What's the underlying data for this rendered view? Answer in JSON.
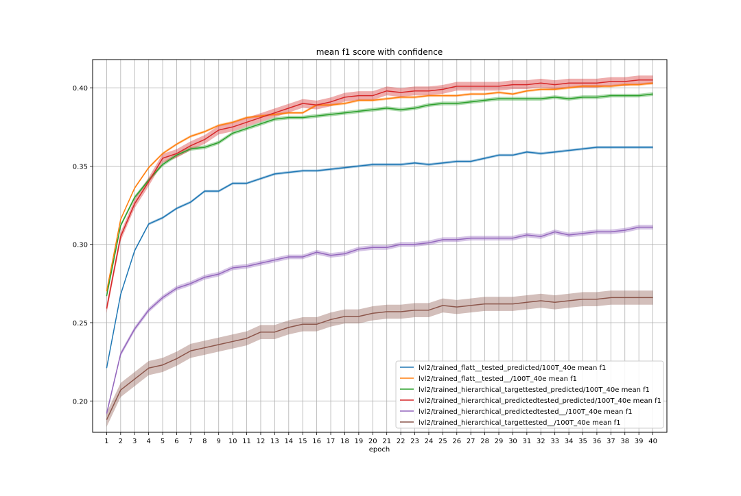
{
  "chart_data": {
    "type": "line",
    "title": "mean f1 score with confidence",
    "xlabel": "epoch",
    "ylabel": "",
    "xlim": [
      0,
      41
    ],
    "ylim": [
      0.18,
      0.418
    ],
    "grid": true,
    "legend_position": "lower-right",
    "x": [
      1,
      2,
      3,
      4,
      5,
      6,
      7,
      8,
      9,
      10,
      11,
      12,
      13,
      14,
      15,
      16,
      17,
      18,
      19,
      20,
      21,
      22,
      23,
      24,
      25,
      26,
      27,
      28,
      29,
      30,
      31,
      32,
      33,
      34,
      35,
      36,
      37,
      38,
      39,
      40
    ],
    "x_ticks": [
      "1",
      "2",
      "3",
      "4",
      "5",
      "6",
      "7",
      "8",
      "9",
      "10",
      "11",
      "12",
      "13",
      "14",
      "15",
      "16",
      "17",
      "18",
      "19",
      "20",
      "21",
      "22",
      "23",
      "24",
      "25",
      "26",
      "27",
      "28",
      "29",
      "30",
      "31",
      "32",
      "33",
      "34",
      "35",
      "36",
      "37",
      "38",
      "39",
      "40"
    ],
    "y_ticks": [
      "0.20",
      "0.25",
      "0.30",
      "0.35",
      "0.40"
    ],
    "y_tick_values": [
      0.2,
      0.25,
      0.3,
      0.35,
      0.4
    ],
    "series": [
      {
        "name": "lvl2/trained_flatt__tested_predicted/100T_40e mean f1",
        "color": "#1f77b4",
        "band": 0.0008,
        "values": [
          0.221,
          0.268,
          0.296,
          0.313,
          0.317,
          0.323,
          0.327,
          0.334,
          0.334,
          0.339,
          0.339,
          0.342,
          0.345,
          0.346,
          0.347,
          0.347,
          0.348,
          0.349,
          0.35,
          0.351,
          0.351,
          0.351,
          0.352,
          0.351,
          0.352,
          0.353,
          0.353,
          0.355,
          0.357,
          0.357,
          0.359,
          0.358,
          0.359,
          0.36,
          0.361,
          0.362,
          0.362,
          0.362,
          0.362,
          0.362
        ]
      },
      {
        "name": "lvl2/trained_flatt__tested__/100T_40e mean f1",
        "color": "#ff7f0e",
        "band": 0.0008,
        "values": [
          0.27,
          0.316,
          0.336,
          0.349,
          0.358,
          0.364,
          0.369,
          0.372,
          0.376,
          0.378,
          0.381,
          0.382,
          0.383,
          0.384,
          0.384,
          0.389,
          0.389,
          0.39,
          0.392,
          0.392,
          0.393,
          0.394,
          0.394,
          0.395,
          0.395,
          0.395,
          0.396,
          0.396,
          0.397,
          0.396,
          0.398,
          0.399,
          0.399,
          0.4,
          0.401,
          0.401,
          0.401,
          0.402,
          0.402,
          0.403
        ]
      },
      {
        "name": "lvl2/trained_hierarchical_targettested_predicted/100T_40e mean f1",
        "color": "#2ca02c",
        "band": 0.0012,
        "values": [
          0.267,
          0.312,
          0.33,
          0.341,
          0.351,
          0.357,
          0.361,
          0.362,
          0.365,
          0.371,
          0.374,
          0.377,
          0.38,
          0.381,
          0.381,
          0.382,
          0.383,
          0.384,
          0.385,
          0.386,
          0.387,
          0.386,
          0.387,
          0.389,
          0.39,
          0.39,
          0.391,
          0.392,
          0.393,
          0.393,
          0.393,
          0.393,
          0.394,
          0.393,
          0.394,
          0.394,
          0.395,
          0.395,
          0.395,
          0.396
        ]
      },
      {
        "name": "lvl2/trained_hierarchical_predictedtested_predicted/100T_40e mean f1",
        "color": "#d62728",
        "band": 0.0028,
        "values": [
          0.259,
          0.305,
          0.326,
          0.34,
          0.355,
          0.358,
          0.363,
          0.367,
          0.373,
          0.375,
          0.378,
          0.381,
          0.384,
          0.387,
          0.39,
          0.389,
          0.391,
          0.394,
          0.395,
          0.395,
          0.398,
          0.397,
          0.398,
          0.398,
          0.399,
          0.401,
          0.401,
          0.401,
          0.401,
          0.402,
          0.402,
          0.403,
          0.402,
          0.403,
          0.403,
          0.403,
          0.404,
          0.404,
          0.405,
          0.405
        ]
      },
      {
        "name": "lvl2/trained_hierarchical_predictedtested__/100T_40e mean f1",
        "color": "#9467bd",
        "band": 0.0015,
        "values": [
          0.192,
          0.23,
          0.246,
          0.258,
          0.266,
          0.272,
          0.275,
          0.279,
          0.281,
          0.285,
          0.286,
          0.288,
          0.29,
          0.292,
          0.292,
          0.295,
          0.293,
          0.294,
          0.297,
          0.298,
          0.298,
          0.3,
          0.3,
          0.301,
          0.303,
          0.303,
          0.304,
          0.304,
          0.304,
          0.304,
          0.306,
          0.305,
          0.308,
          0.306,
          0.307,
          0.308,
          0.308,
          0.309,
          0.311,
          0.311
        ]
      },
      {
        "name": "lvl2/trained_hierarchical_targettested__/100T_40e mean f1",
        "color": "#8c564b",
        "band": 0.0045,
        "values": [
          0.188,
          0.207,
          0.214,
          0.221,
          0.223,
          0.227,
          0.232,
          0.234,
          0.236,
          0.238,
          0.24,
          0.244,
          0.244,
          0.247,
          0.249,
          0.249,
          0.252,
          0.254,
          0.254,
          0.256,
          0.257,
          0.257,
          0.258,
          0.258,
          0.261,
          0.26,
          0.261,
          0.262,
          0.262,
          0.262,
          0.263,
          0.264,
          0.263,
          0.264,
          0.265,
          0.265,
          0.266,
          0.266,
          0.266,
          0.266
        ]
      }
    ]
  }
}
